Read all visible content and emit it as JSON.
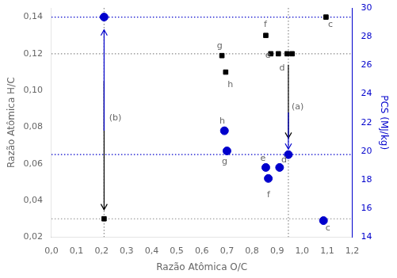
{
  "chart_data": {
    "type": "scatter",
    "xlabel": "Razão Atômica O/C",
    "ylabel": "Razão Atômica H/C",
    "y2label": "PCS (MJ/kg)",
    "grid": false,
    "series": [
      {
        "color": "#000000",
        "marker": "square",
        "x": [
          0.21,
          0.68,
          0.695,
          0.855,
          0.875,
          0.905,
          0.94,
          0.96,
          1.095
        ],
        "values": [
          0.03,
          0.119,
          0.11,
          0.13,
          0.12,
          0.12,
          0.12,
          0.12,
          0.14
        ]
      },
      {
        "color": "#0000cc",
        "marker": "circle",
        "x": [
          0.21,
          0.69,
          0.7,
          0.855,
          0.865,
          0.91,
          0.945,
          1.085
        ],
        "values": [
          0.14,
          0.078,
          0.067,
          0.058,
          0.052,
          0.058,
          0.065,
          0.029
        ]
      }
    ],
    "xlim": [
      0.0,
      1.2
    ],
    "xticks": [
      {
        "value": 0.0,
        "label": "0,0"
      },
      {
        "value": 0.1,
        "label": "0,1"
      },
      {
        "value": 0.2,
        "label": "0,2"
      },
      {
        "value": 0.3,
        "label": "0,3"
      },
      {
        "value": 0.4,
        "label": "0,4"
      },
      {
        "value": 0.5,
        "label": "0,5"
      },
      {
        "value": 0.6,
        "label": "0,6"
      },
      {
        "value": 0.7,
        "label": "0,7"
      },
      {
        "value": 0.8,
        "label": "0,8"
      },
      {
        "value": 0.9,
        "label": "0,9"
      },
      {
        "value": 1.0,
        "label": "1,0"
      },
      {
        "value": 1.1,
        "label": "1,1"
      },
      {
        "value": 1.2,
        "label": "1,2"
      }
    ],
    "ylim": [
      0.02,
      0.145
    ],
    "yticks": [
      {
        "value": 0.02,
        "label": "0,02"
      },
      {
        "value": 0.04,
        "label": "0,04"
      },
      {
        "value": 0.06,
        "label": "0,06"
      },
      {
        "value": 0.08,
        "label": "0,08"
      },
      {
        "value": 0.1,
        "label": "0,10"
      },
      {
        "value": 0.12,
        "label": "0,12"
      },
      {
        "value": 0.14,
        "label": "0,14"
      }
    ],
    "y2lim": [
      14,
      30
    ],
    "y2ticks": [
      14,
      16,
      18,
      20,
      22,
      24,
      26,
      28,
      30
    ],
    "hlines": [
      {
        "y": 0.14,
        "color": "#0000cc",
        "line_style": "dotted"
      },
      {
        "y": 0.065,
        "color": "#0000cc",
        "line_style": "dotted"
      },
      {
        "y": 0.12,
        "color": "#888888",
        "line_style": "dotted"
      },
      {
        "y": 0.03,
        "color": "#888888",
        "line_style": "dotted"
      }
    ],
    "vlines": [
      {
        "x": 0.21,
        "color": "#888888",
        "line_style": "dotted"
      },
      {
        "x": 0.945,
        "color": "#888888",
        "line_style": "dotted"
      }
    ],
    "arrows": [
      {
        "x": 0.21,
        "y0": 0.105,
        "y1": 0.035,
        "color": "#000000"
      },
      {
        "x": 0.21,
        "y0": 0.078,
        "y1": 0.133,
        "color": "#0000cc"
      },
      {
        "x": 0.945,
        "y0": 0.114,
        "y1": 0.074,
        "color": "#000000"
      },
      {
        "x": 0.945,
        "y0": 0.088,
        "y1": 0.068,
        "color": "#0000cc"
      }
    ],
    "annotations": [
      {
        "text": "g",
        "x": 0.66,
        "y": 0.124
      },
      {
        "text": "h",
        "x": 0.703,
        "y": 0.103
      },
      {
        "text": "f",
        "x": 0.847,
        "y": 0.136
      },
      {
        "text": "e",
        "x": 0.853,
        "y": 0.119
      },
      {
        "text": "d",
        "x": 0.909,
        "y": 0.112
      },
      {
        "text": "c",
        "x": 1.103,
        "y": 0.136
      },
      {
        "text": "h",
        "x": 0.67,
        "y": 0.083
      },
      {
        "text": "g",
        "x": 0.68,
        "y": 0.061
      },
      {
        "text": "e",
        "x": 0.833,
        "y": 0.063
      },
      {
        "text": "f",
        "x": 0.86,
        "y": 0.043
      },
      {
        "text": "d",
        "x": 0.917,
        "y": 0.062
      },
      {
        "text": "c",
        "x": 1.093,
        "y": 0.025
      },
      {
        "text": "(a)",
        "x": 0.958,
        "y": 0.091
      },
      {
        "text": "(b)",
        "x": 0.23,
        "y": 0.085
      }
    ]
  }
}
